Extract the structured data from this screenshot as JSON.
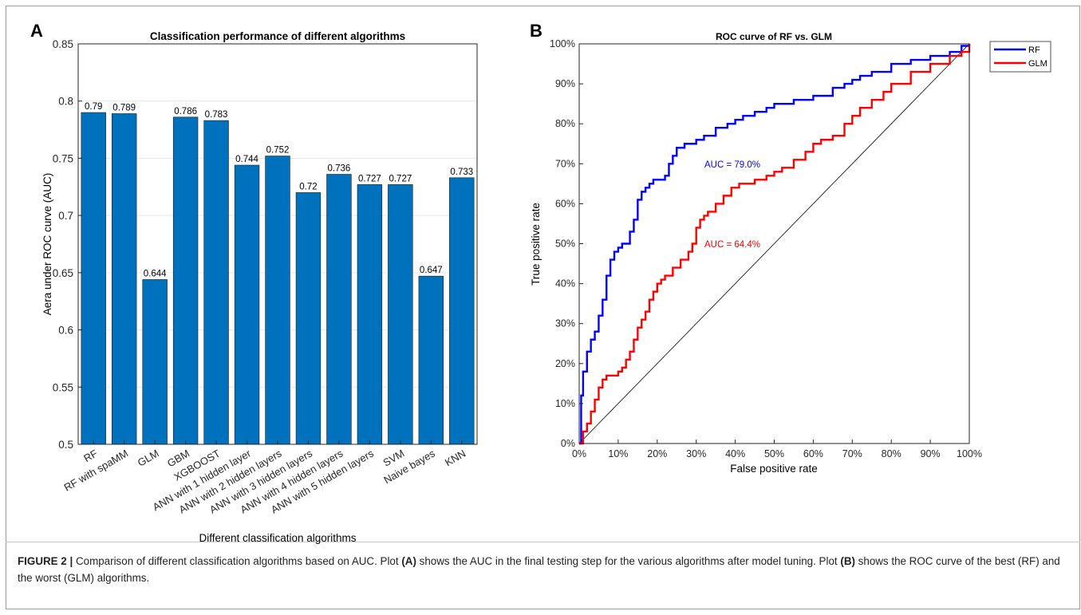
{
  "caption": {
    "lead": "FIGURE 2 |",
    "t1": " Comparison of different classification algorithms based on AUC. Plot ",
    "a": "(A)",
    "t2": " shows the AUC in the final testing step for the various algorithms after model tuning. Plot ",
    "b": "(B)",
    "t3": " shows the ROC curve of the best (RF) and the worst (GLM) algorithms."
  },
  "chart_data": [
    {
      "panel": "A",
      "type": "bar",
      "title": "Classification performance of different algorithms",
      "xlabel": "Different classification algorithms",
      "ylabel": "Aera under ROC curve (AUC)",
      "ylim": [
        0.5,
        0.85
      ],
      "yticks": [
        "0.5",
        "0.55",
        "0.6",
        "0.65",
        "0.7",
        "0.75",
        "0.8",
        "0.85"
      ],
      "bar_color": "#0072BD",
      "categories": [
        "RF",
        "RF with spaMM",
        "GLM",
        "GBM",
        "XGBOOST",
        "ANN with 1 hidden layer",
        "ANN with 2 hidden layers",
        "ANN with 3 hidden layers",
        "ANN with 4 hidden layers",
        "ANN with 5 hidden layers",
        "SVM",
        "Naive bayes",
        "KNN"
      ],
      "values": [
        0.79,
        0.789,
        0.644,
        0.786,
        0.783,
        0.744,
        0.752,
        0.72,
        0.736,
        0.727,
        0.727,
        0.647,
        0.733
      ],
      "data_labels": [
        "0.79",
        "0.789",
        "0.644",
        "0.786",
        "0.783",
        "0.744",
        "0.752",
        "0.72",
        "0.736",
        "0.727",
        "0.727",
        "0.647",
        "0.733"
      ]
    },
    {
      "panel": "B",
      "type": "line",
      "title": "ROC curve of RF vs. GLM",
      "xlabel": "False positive rate",
      "ylabel": "True positive rate",
      "xlim": [
        0,
        100
      ],
      "ylim": [
        0,
        100
      ],
      "ticks": [
        "0%",
        "10%",
        "20%",
        "30%",
        "40%",
        "50%",
        "60%",
        "70%",
        "80%",
        "90%",
        "100%"
      ],
      "legend_position": "outside-top-right",
      "series": [
        {
          "name": "RF",
          "color": "#0000ff",
          "annotation": "AUC = 79.0%",
          "x": [
            0,
            0.5,
            1,
            2,
            3,
            4,
            5,
            6,
            7,
            8,
            9,
            10,
            11,
            12,
            13,
            14,
            15,
            16,
            17,
            18,
            19,
            20,
            21,
            22,
            23,
            24,
            25,
            26,
            27,
            28,
            30,
            32,
            35,
            38,
            40,
            42,
            45,
            48,
            50,
            55,
            60,
            65,
            68,
            70,
            72,
            75,
            80,
            85,
            90,
            95,
            98,
            100
          ],
          "y": [
            0,
            12,
            18,
            23,
            26,
            28,
            32,
            36,
            42,
            46,
            48,
            49,
            50,
            50,
            53,
            56,
            61,
            63,
            64,
            65,
            66,
            66,
            66,
            67,
            70,
            72,
            74,
            74,
            75,
            75,
            76,
            77,
            79,
            80,
            81,
            82,
            83,
            84,
            85,
            86,
            87,
            89,
            90,
            91,
            92,
            93,
            95,
            96,
            97,
            98,
            99.5,
            100
          ]
        },
        {
          "name": "GLM",
          "color": "#ff0000",
          "annotation": "AUC = 64.4%",
          "x": [
            0,
            1,
            2,
            3,
            4,
            5,
            6,
            7,
            8,
            10,
            11,
            12,
            13,
            14,
            15,
            16,
            17,
            18,
            19,
            20,
            21,
            22,
            24,
            26,
            28,
            29,
            30,
            31,
            32,
            33,
            35,
            37,
            39,
            41,
            42,
            45,
            48,
            50,
            52,
            55,
            58,
            60,
            62,
            65,
            68,
            70,
            72,
            75,
            78,
            80,
            85,
            90,
            95,
            98,
            100
          ],
          "y": [
            0,
            3,
            5,
            8,
            11,
            14,
            16,
            17,
            17,
            18,
            19,
            21,
            23,
            26,
            29,
            31,
            33,
            36,
            38,
            40,
            41,
            42,
            44,
            46,
            48,
            50,
            54,
            56,
            57,
            58,
            60,
            62,
            64,
            65,
            65,
            66,
            67,
            68,
            69,
            71,
            73,
            75,
            76,
            77,
            80,
            82,
            84,
            86,
            88,
            90,
            93,
            95,
            97,
            98,
            100
          ]
        }
      ]
    }
  ]
}
